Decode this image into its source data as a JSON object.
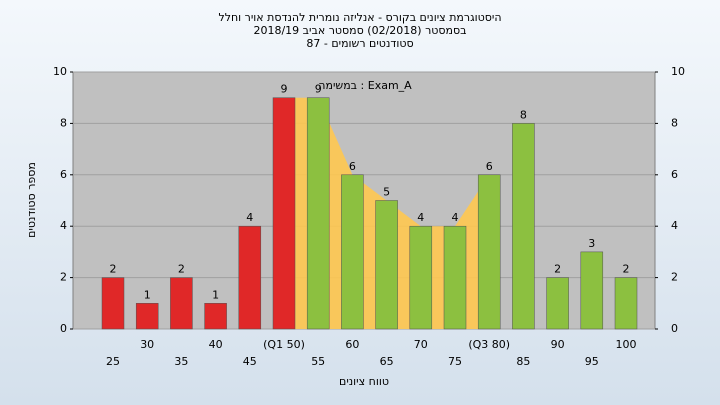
{
  "chart_data": {
    "type": "bar",
    "title_lines": [
      "היסטוגרמת ציונים בקורס - אנליזה נומרית להנדסת אויר וחלל",
      "בסמסטר  (02/2018)  סמסטר אביב 2018/19",
      "סטודנטים רשומים - 87"
    ],
    "annotation": "במשימה : Exam_A",
    "x_label": "טווח ציונים",
    "y_label": "מספר סטודנטים",
    "categories": [
      "25",
      "30",
      "35",
      "40",
      "45",
      "(Q1 50)",
      "55",
      "60",
      "65",
      "70",
      "75",
      "(Q3 80)",
      "85",
      "90",
      "95",
      "100"
    ],
    "values": [
      2,
      1,
      2,
      1,
      4,
      9,
      9,
      6,
      5,
      4,
      4,
      6,
      8,
      2,
      3,
      2
    ],
    "colors": [
      "#e02828",
      "#e02828",
      "#e02828",
      "#e02828",
      "#e02828",
      "#e02828",
      "#8cc040",
      "#8cc040",
      "#8cc040",
      "#8cc040",
      "#8cc040",
      "#8cc040",
      "#8cc040",
      "#8cc040",
      "#8cc040",
      "#8cc040"
    ],
    "quartile_area_color": "#ffc850",
    "ylim": [
      0,
      10
    ],
    "yticks": [
      0,
      2,
      4,
      6,
      8,
      10
    ],
    "grid": true
  }
}
